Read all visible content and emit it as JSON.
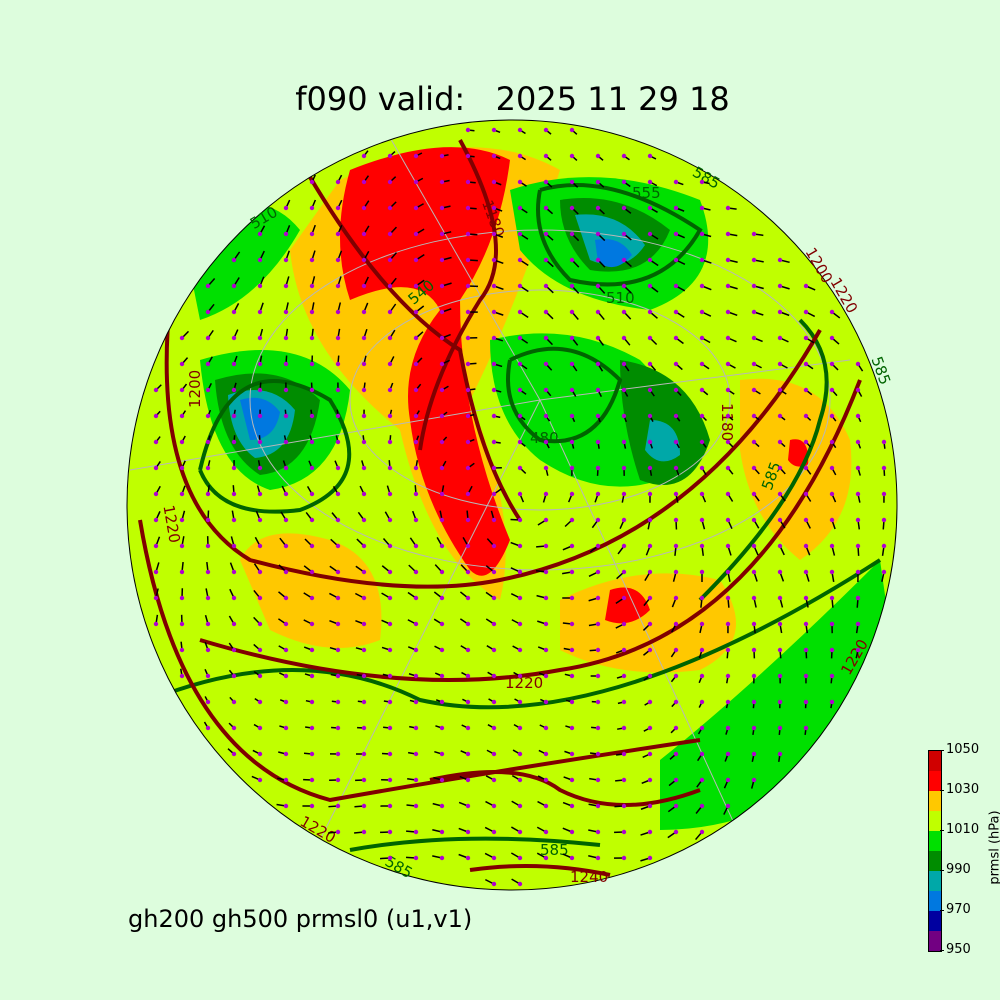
{
  "title": "f090 valid:   2025 11 29 18",
  "footer": "gh200 gh500 prmsl0 (u1,v1)",
  "colorbar": {
    "label": "prmsl (hPa)",
    "ticks": [
      "950",
      "970",
      "990",
      "1010",
      "1030",
      "1050"
    ],
    "colors": [
      "#720082",
      "#0000a0",
      "#0078e0",
      "#00a8a8",
      "#008c00",
      "#00e000",
      "#c0ff00",
      "#ffc800",
      "#ff0000",
      "#d00000"
    ]
  },
  "contour_labels": {
    "gh200": [
      "1200",
      "1180",
      "1220",
      "1220",
      "1240",
      "1220",
      "1200",
      "1220",
      "1220",
      "1180"
    ],
    "gh500": [
      "510",
      "555",
      "510",
      "585",
      "540",
      "480",
      "585",
      "585",
      "585",
      "585"
    ]
  },
  "colors": {
    "background": "#ddfddd",
    "gh200": "#800000",
    "gh500": "#006400",
    "wind": "#000000",
    "dots": "#b000d0"
  }
}
